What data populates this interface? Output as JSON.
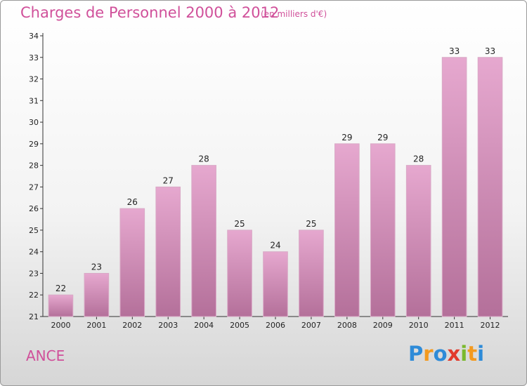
{
  "header": {
    "title": "Charges de Personnel 2000 à 2012",
    "subtitle": "(en milliers d'€)"
  },
  "footer": {
    "town": "ANCE",
    "logo_letters": [
      "P",
      "r",
      "o",
      "x",
      "i",
      "t",
      "i"
    ],
    "logo_colors": [
      "#2e8bd8",
      "#f39a1f",
      "#2e8bd8",
      "#e23a2c",
      "#7ab92d",
      "#f39a1f",
      "#2e8bd8"
    ]
  },
  "chart_data": {
    "type": "bar",
    "title": "Charges de Personnel 2000 à 2012",
    "subtitle": "(en milliers d'€)",
    "categories": [
      "2000",
      "2001",
      "2002",
      "2003",
      "2004",
      "2005",
      "2006",
      "2007",
      "2008",
      "2009",
      "2010",
      "2011",
      "2012"
    ],
    "values": [
      22,
      23,
      26,
      27,
      28,
      25,
      24,
      25,
      29,
      29,
      28,
      33,
      33
    ],
    "ylim": [
      21,
      34
    ],
    "yticks": [
      21,
      22,
      23,
      24,
      25,
      26,
      27,
      28,
      29,
      30,
      31,
      32,
      33,
      34
    ],
    "grid": false,
    "bar_color_top": "#e6a8cf",
    "bar_color_bottom": "#b4709a"
  }
}
